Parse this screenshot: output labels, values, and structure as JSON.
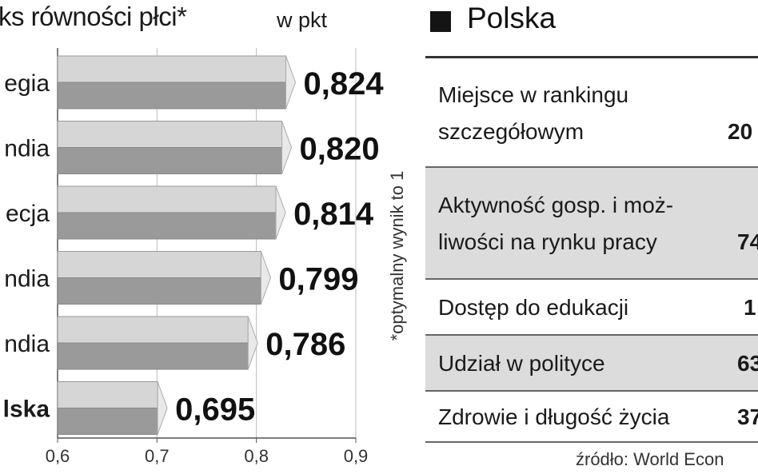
{
  "chart_data": {
    "type": "bar",
    "orientation": "horizontal",
    "title": "ks równości płci*",
    "unit_label": "w pkt",
    "footnote": "*optymalny wynik to 1",
    "categories": [
      "egia",
      "ndia",
      "ecja",
      "ndia",
      "ndia",
      "lska"
    ],
    "values": [
      0.824,
      0.82,
      0.814,
      0.799,
      0.786,
      0.695
    ],
    "value_labels": [
      "0,824",
      "0,820",
      "0,814",
      "0,799",
      "0,786",
      "0,695"
    ],
    "highlighted_category_index": 5,
    "xlim": [
      0.6,
      0.9
    ],
    "x_ticks": [
      0.6,
      0.7,
      0.8,
      0.9
    ],
    "x_tick_labels": [
      "0,6",
      "0,7",
      "0,8",
      "0,9"
    ],
    "grid": true,
    "colors": {
      "bar_top": "#d6d6d6",
      "bar_bottom": "#9a9a9a",
      "bar_end": "#e9e9e9",
      "grid": "#bbbbbb"
    }
  },
  "panel": {
    "title": "Polska",
    "rows": [
      {
        "label": "Miejsce w rankingu\nszczegółowym",
        "value": "20",
        "shaded": false
      },
      {
        "label": "Aktywność gosp. i moż-\nliwości na rynku pracy",
        "value": "74",
        "shaded": true
      },
      {
        "label": "Dostęp do edukacji",
        "value": "1",
        "shaded": false
      },
      {
        "label": "Udział w polityce",
        "value": "63",
        "shaded": true
      },
      {
        "label": "Zdrowie i długość życia",
        "value": "37",
        "shaded": false
      }
    ],
    "source": "źródło: World Econ"
  }
}
